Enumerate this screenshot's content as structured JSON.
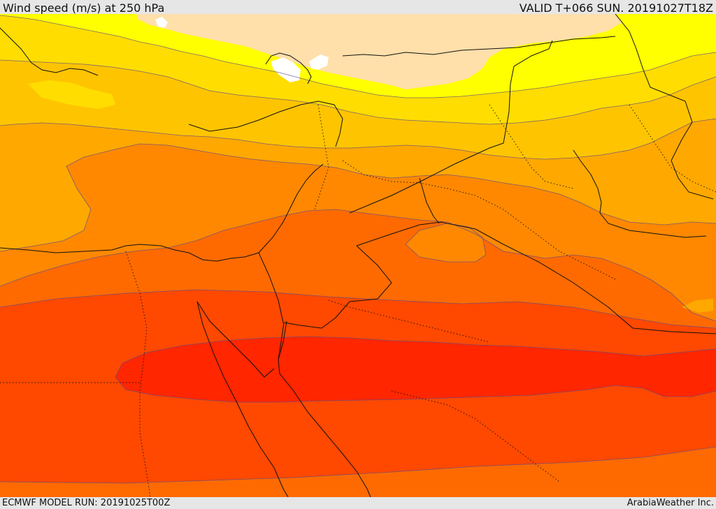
{
  "header": {
    "title": "Wind speed (m/s) at 250 hPa",
    "valid": "VALID T+066 SUN. 20191027T18Z"
  },
  "footer": {
    "model_run": "ECMWF MODEL RUN: 20191025T00Z",
    "credit": "ArabiaWeather Inc."
  },
  "map": {
    "field": "wind-speed",
    "palette": {
      "white": "#ffffff",
      "peach": "#ffdfaa",
      "yellow": "#ffff00",
      "gold": "#ffdd00",
      "amber": "#ffc400",
      "orange_light": "#ffa800",
      "orange": "#ff8800",
      "orange_dark": "#ff6a00",
      "red_orange": "#ff4800",
      "red": "#ff2600"
    }
  }
}
